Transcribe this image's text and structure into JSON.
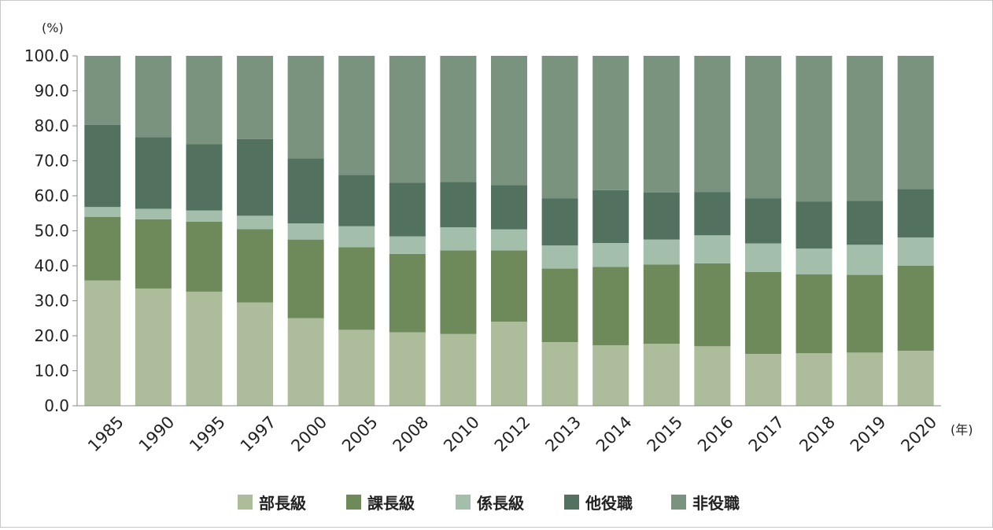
{
  "chart_data": {
    "type": "bar",
    "stacked": true,
    "y_unit_label": "(%)",
    "x_unit_label": "(年)",
    "ylim": [
      0,
      100
    ],
    "yticks": [
      "0.0",
      "10.0",
      "20.0",
      "30.0",
      "40.0",
      "50.0",
      "60.0",
      "70.0",
      "80.0",
      "90.0",
      "100.0"
    ],
    "categories": [
      "1985",
      "1990",
      "1995",
      "1997",
      "2000",
      "2005",
      "2008",
      "2010",
      "2012",
      "2013",
      "2014",
      "2015",
      "2016",
      "2017",
      "2018",
      "2019",
      "2020"
    ],
    "legend_position": "bottom",
    "series": [
      {
        "name": "部長級",
        "color": "#adbd9b",
        "values": [
          35.8,
          33.5,
          32.6,
          29.5,
          25.0,
          21.7,
          21.0,
          20.5,
          24.0,
          18.2,
          17.3,
          17.7,
          17.0,
          14.8,
          15.0,
          15.2,
          15.7
        ]
      },
      {
        "name": "課長級",
        "color": "#6e8a5b",
        "values": [
          18.2,
          19.8,
          20.0,
          21.0,
          22.5,
          23.6,
          22.4,
          23.9,
          20.4,
          21.0,
          22.4,
          22.7,
          23.7,
          23.4,
          22.6,
          22.2,
          24.3
        ]
      },
      {
        "name": "係長級",
        "color": "#a3bfab",
        "values": [
          2.8,
          3.0,
          3.2,
          3.8,
          4.6,
          6.0,
          5.0,
          6.6,
          6.0,
          6.6,
          6.8,
          7.1,
          8.0,
          8.2,
          7.3,
          8.6,
          8.1
        ]
      },
      {
        "name": "他役職",
        "color": "#52725f",
        "values": [
          23.5,
          20.5,
          19.0,
          21.9,
          18.6,
          14.7,
          15.3,
          13.0,
          12.7,
          13.5,
          15.1,
          13.4,
          12.4,
          12.9,
          13.5,
          12.6,
          13.8
        ]
      },
      {
        "name": "非役職",
        "color": "#7a937f",
        "values": [
          19.7,
          23.2,
          25.2,
          23.8,
          29.3,
          34.0,
          36.3,
          36.0,
          36.9,
          40.7,
          38.4,
          39.1,
          38.9,
          40.7,
          41.6,
          41.4,
          38.1
        ]
      }
    ]
  }
}
